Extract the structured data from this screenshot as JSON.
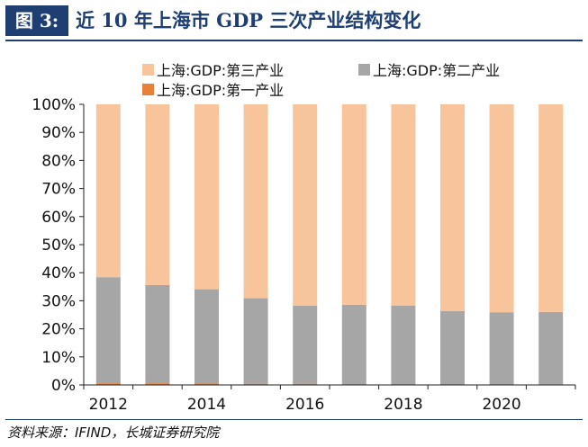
{
  "figure": {
    "label": "图 3:",
    "title": "近 10 年上海市 GDP 三次产业结构变化"
  },
  "source": "资料来源：IFIND，长城证券研究院",
  "chart_data": {
    "type": "bar",
    "stacked": true,
    "categories": [
      "2012",
      "2013",
      "2014",
      "2015",
      "2016",
      "2017",
      "2018",
      "2019",
      "2020",
      "2021"
    ],
    "x_tick_labels": [
      "2012",
      "2014",
      "2016",
      "2018",
      "2020"
    ],
    "series": [
      {
        "name": "上海:GDP:第一产业",
        "color": "#e8803a",
        "values": [
          0.6,
          0.6,
          0.5,
          0.4,
          0.4,
          0.3,
          0.3,
          0.3,
          0.3,
          0.2
        ]
      },
      {
        "name": "上海:GDP:第二产业",
        "color": "#a6a6a6",
        "values": [
          37.8,
          35.0,
          33.6,
          30.5,
          27.8,
          28.3,
          28.0,
          26.0,
          25.6,
          25.8
        ]
      },
      {
        "name": "上海:GDP:第三产业",
        "color": "#f8c49c",
        "values": [
          61.6,
          64.4,
          65.9,
          69.1,
          71.8,
          71.4,
          71.7,
          73.7,
          74.1,
          74.0
        ]
      }
    ],
    "y_ticks": [
      "0%",
      "10%",
      "20%",
      "30%",
      "40%",
      "50%",
      "60%",
      "70%",
      "80%",
      "90%",
      "100%"
    ],
    "ylim": [
      0,
      100
    ],
    "grid": false,
    "legend_position": "top"
  }
}
